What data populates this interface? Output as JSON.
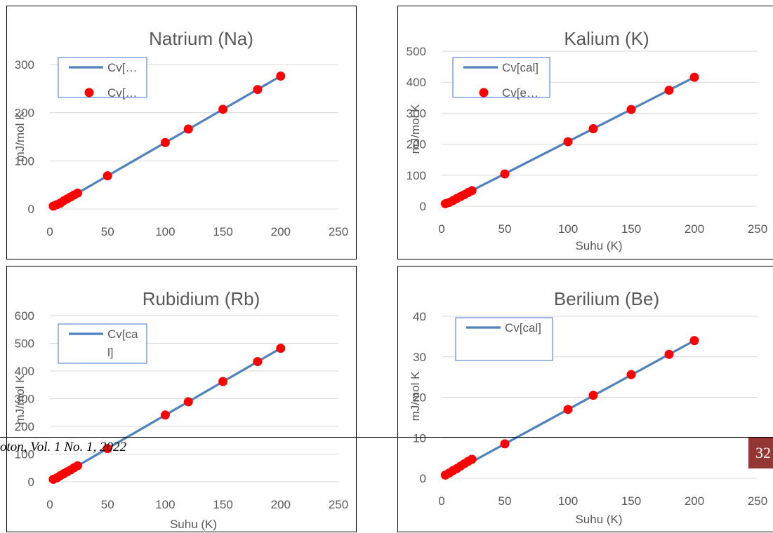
{
  "footer": {
    "journal_text": "oton, Vol. 1 No. 1, 2022",
    "page_number": "32",
    "badge_color": "#943634"
  },
  "colors": {
    "line": "#4f81bd",
    "marker": "#ff0000",
    "grid": "#d9d9d9",
    "legend_border": "#4472c4"
  },
  "chart_data": [
    {
      "type": "line",
      "title": "Natrium (Na)",
      "xlabel": "",
      "ylabel": "mJ/mol K",
      "xlim": [
        0,
        250
      ],
      "ylim": [
        0,
        300
      ],
      "xticks": [
        "0",
        "50",
        "100",
        "150",
        "200",
        "250"
      ],
      "yticks": [
        "0",
        "100",
        "200",
        "300"
      ],
      "grid": true,
      "legend": {
        "placement": "top-left",
        "entries": [
          "Cv[…",
          "Cv[…"
        ]
      },
      "series": [
        {
          "name": "Cv[…",
          "style": "line",
          "x": [
            3,
            200
          ],
          "y": [
            4,
            276
          ]
        },
        {
          "name": "Cv[…",
          "style": "marker",
          "x": [
            3,
            6,
            9,
            12,
            15,
            18,
            21,
            24,
            50,
            100,
            120,
            150,
            180,
            200
          ],
          "y": [
            6,
            9,
            12,
            17,
            21,
            25,
            29,
            33,
            69,
            138,
            166,
            207,
            248,
            276
          ]
        }
      ]
    },
    {
      "type": "line",
      "title": "Kalium (K)",
      "xlabel": "Suhu (K)",
      "ylabel": "mJ/mol K",
      "xlim": [
        0,
        250
      ],
      "ylim": [
        0,
        500
      ],
      "xticks": [
        "0",
        "50",
        "100",
        "150",
        "200",
        "250"
      ],
      "yticks": [
        "0",
        "100",
        "200",
        "300",
        "400",
        "500"
      ],
      "grid": true,
      "legend": {
        "placement": "top-left",
        "entries": [
          "Cv[cal]",
          "Cv[e…"
        ]
      },
      "series": [
        {
          "name": "Cv[cal]",
          "style": "line",
          "x": [
            3,
            200
          ],
          "y": [
            7,
            416
          ]
        },
        {
          "name": "Cv[e…",
          "style": "marker",
          "x": [
            3,
            6,
            9,
            12,
            15,
            18,
            21,
            24,
            50,
            100,
            120,
            150,
            180,
            200
          ],
          "y": [
            8,
            12,
            18,
            25,
            31,
            37,
            44,
            50,
            104,
            208,
            250,
            312,
            374,
            416
          ]
        }
      ]
    },
    {
      "type": "line",
      "title": "Rubidium (Rb)",
      "xlabel": "Suhu (K)",
      "ylabel": "mJ/mol K",
      "xlim": [
        0,
        250
      ],
      "ylim": [
        0,
        600
      ],
      "xticks": [
        "0",
        "50",
        "100",
        "150",
        "200",
        "250"
      ],
      "yticks": [
        "0",
        "100",
        "200",
        "300",
        "400",
        "500",
        "600"
      ],
      "grid": true,
      "legend": {
        "placement": "top-left",
        "entries": [
          "Cv[ca",
          "l]"
        ]
      },
      "series": [
        {
          "name": "Cv[cal]",
          "style": "line",
          "x": [
            3,
            200
          ],
          "y": [
            7,
            482
          ]
        },
        {
          "name": "",
          "style": "marker",
          "x": [
            3,
            6,
            9,
            12,
            15,
            18,
            21,
            24,
            50,
            100,
            120,
            150,
            180,
            200
          ],
          "y": [
            9,
            14,
            22,
            29,
            36,
            43,
            51,
            58,
            120,
            241,
            289,
            362,
            434,
            482
          ]
        }
      ]
    },
    {
      "type": "line",
      "title": "Berilium (Be)",
      "xlabel": "Suhu (K)",
      "ylabel": "mJ/mol K",
      "xlim": [
        0,
        250
      ],
      "ylim": [
        0,
        40
      ],
      "xticks": [
        "0",
        "50",
        "100",
        "150",
        "200",
        "250"
      ],
      "yticks": [
        "0",
        "10",
        "20",
        "30",
        "40"
      ],
      "grid": true,
      "legend": {
        "placement": "top-left",
        "entries": [
          "Cv[cal]"
        ]
      },
      "series": [
        {
          "name": "Cv[cal]",
          "style": "line",
          "x": [
            3,
            200
          ],
          "y": [
            0.5,
            34
          ]
        },
        {
          "name": "",
          "style": "marker",
          "x": [
            3,
            6,
            9,
            12,
            15,
            18,
            21,
            24,
            50,
            100,
            120,
            150,
            180,
            200
          ],
          "y": [
            0.8,
            1.3,
            1.9,
            2.4,
            3.0,
            3.6,
            4.2,
            4.7,
            8.5,
            17,
            20.5,
            25.6,
            30.6,
            34
          ]
        }
      ]
    }
  ]
}
